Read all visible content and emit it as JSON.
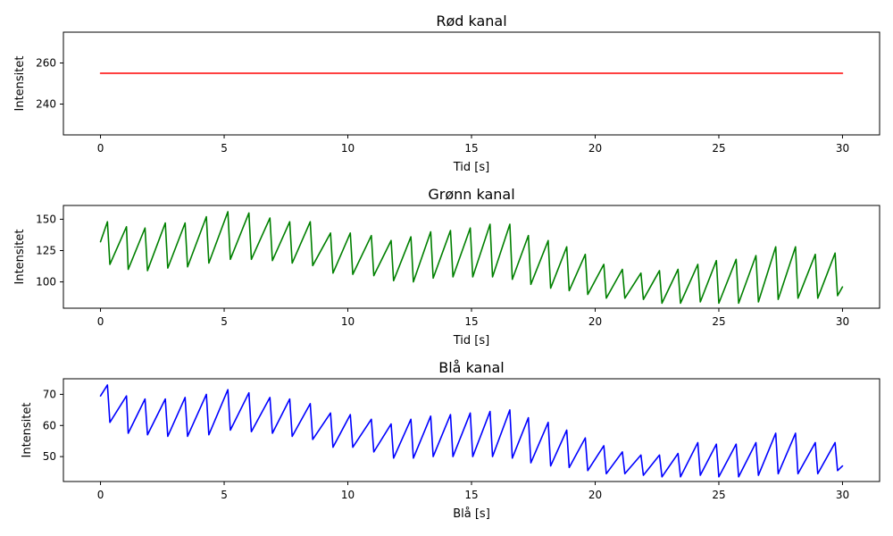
{
  "chart_data": [
    {
      "type": "line",
      "title": "Rød kanal",
      "xlabel": "Tid [s]",
      "ylabel": "Intensitet",
      "xlim": [
        -1.5,
        31.5
      ],
      "ylim": [
        225,
        275
      ],
      "xticks": [
        0,
        5,
        10,
        15,
        20,
        25,
        30
      ],
      "yticks": [
        240,
        260
      ],
      "grid": false,
      "series": [
        {
          "color": "#ff0000",
          "x": [
            0,
            30
          ],
          "y": [
            255,
            255
          ]
        }
      ]
    },
    {
      "type": "line",
      "title": "Grønn kanal",
      "xlabel": "Tid [s]",
      "ylabel": "Intensitet",
      "xlim": [
        -1.5,
        31.5
      ],
      "ylim": [
        79,
        161
      ],
      "xticks": [
        0,
        5,
        10,
        15,
        20,
        25,
        30
      ],
      "yticks": [
        100,
        125,
        150
      ],
      "grid": false,
      "series": [
        {
          "color": "#008000",
          "x": [
            0,
            0.28,
            0.38,
            1.05,
            1.12,
            1.8,
            1.9,
            2.62,
            2.72,
            3.42,
            3.52,
            4.28,
            4.38,
            5.15,
            5.25,
            6.0,
            6.1,
            6.85,
            6.95,
            7.65,
            7.75,
            8.48,
            8.58,
            9.3,
            9.4,
            10.1,
            10.2,
            10.95,
            11.05,
            11.75,
            11.85,
            12.55,
            12.65,
            13.35,
            13.45,
            14.15,
            14.25,
            14.95,
            15.05,
            15.75,
            15.85,
            16.55,
            16.65,
            17.3,
            17.4,
            18.1,
            18.2,
            18.85,
            18.95,
            19.6,
            19.7,
            20.35,
            20.45,
            21.1,
            21.2,
            21.85,
            21.95,
            22.6,
            22.7,
            23.35,
            23.45,
            24.15,
            24.25,
            24.9,
            25.0,
            25.7,
            25.8,
            26.5,
            26.6,
            27.3,
            27.4,
            28.1,
            28.2,
            28.9,
            29.0,
            29.7,
            29.8,
            30.0
          ],
          "y": [
            132,
            148,
            114,
            144,
            110,
            143,
            109,
            147,
            111,
            147,
            112,
            152,
            115,
            156,
            118,
            155,
            118,
            151,
            117,
            148,
            115,
            148,
            113,
            139,
            107,
            139,
            106,
            137,
            105,
            133,
            101,
            136,
            100,
            140,
            103,
            141,
            104,
            143,
            104,
            146,
            104,
            146,
            102,
            137,
            98,
            133,
            95,
            128,
            93,
            122,
            90,
            114,
            87,
            110,
            87,
            107,
            86,
            109,
            83,
            110,
            83,
            114,
            84,
            117,
            83,
            118,
            83,
            121,
            84,
            128,
            86,
            128,
            87,
            122,
            87,
            123,
            89,
            96
          ]
        }
      ]
    },
    {
      "type": "line",
      "title": "Blå kanal",
      "xlabel": "Blå [s]",
      "ylabel": "Intensitet",
      "xlim": [
        -1.5,
        31.5
      ],
      "ylim": [
        42,
        75
      ],
      "xticks": [
        0,
        5,
        10,
        15,
        20,
        25,
        30
      ],
      "yticks": [
        50,
        60,
        70
      ],
      "grid": false,
      "series": [
        {
          "color": "#0000ff",
          "x": [
            0,
            0.28,
            0.38,
            1.05,
            1.12,
            1.8,
            1.9,
            2.62,
            2.72,
            3.42,
            3.52,
            4.28,
            4.38,
            5.15,
            5.25,
            6.0,
            6.1,
            6.85,
            6.95,
            7.65,
            7.75,
            8.48,
            8.58,
            9.3,
            9.4,
            10.1,
            10.2,
            10.95,
            11.05,
            11.75,
            11.85,
            12.55,
            12.65,
            13.35,
            13.45,
            14.15,
            14.25,
            14.95,
            15.05,
            15.75,
            15.85,
            16.55,
            16.65,
            17.3,
            17.4,
            18.1,
            18.2,
            18.85,
            18.95,
            19.6,
            19.7,
            20.35,
            20.45,
            21.1,
            21.2,
            21.85,
            21.95,
            22.6,
            22.7,
            23.35,
            23.45,
            24.15,
            24.25,
            24.9,
            25.0,
            25.7,
            25.8,
            26.5,
            26.6,
            27.3,
            27.4,
            28.1,
            28.2,
            28.9,
            29.0,
            29.7,
            29.8,
            30.0
          ],
          "y": [
            69.5,
            73,
            61,
            69.5,
            57.5,
            68.5,
            57,
            68.5,
            56.5,
            69,
            56.5,
            70,
            57,
            71.5,
            58.5,
            70.5,
            58,
            69,
            57.5,
            68.5,
            56.5,
            67,
            55.5,
            64,
            53,
            63.5,
            53,
            62,
            51.5,
            60.5,
            49.5,
            62,
            49.5,
            63,
            50,
            63.5,
            50,
            64,
            50,
            64.5,
            50,
            65,
            49.5,
            62.5,
            48,
            61,
            47,
            58.5,
            46.5,
            56,
            45.5,
            53.5,
            44.5,
            51.5,
            44.5,
            50.5,
            44,
            50.5,
            43.5,
            51,
            43.5,
            54.5,
            44,
            54,
            43.5,
            54,
            43.5,
            54.5,
            44,
            57.5,
            44.5,
            57.5,
            44.5,
            54.5,
            44.5,
            54.5,
            45.5,
            47
          ]
        }
      ]
    }
  ]
}
